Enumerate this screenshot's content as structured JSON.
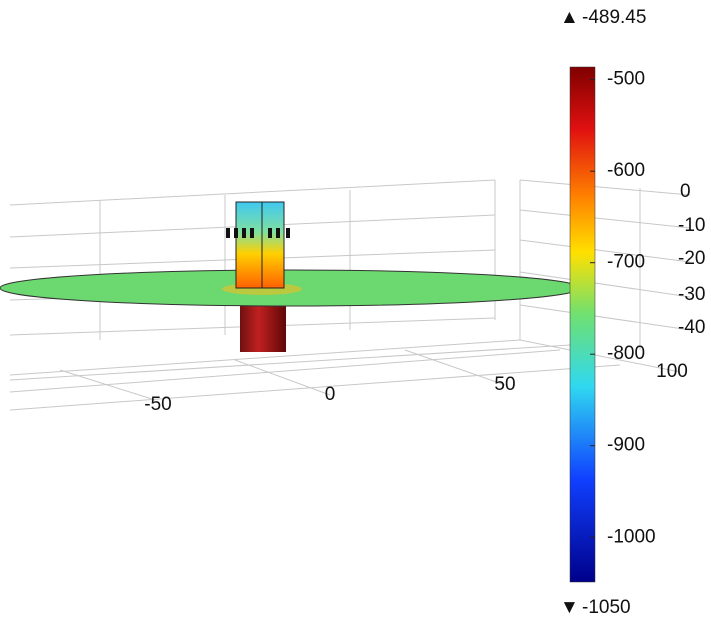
{
  "colorbar": {
    "max": -489.45,
    "min": -1050,
    "ticks": [
      -500,
      -600,
      -700,
      -800,
      -900,
      -1000
    ]
  },
  "x_axis": {
    "ticks": [
      -50,
      0,
      50,
      100
    ]
  },
  "y_axis": {
    "ticks": [
      0,
      -10,
      -20,
      -30,
      -40
    ]
  }
}
